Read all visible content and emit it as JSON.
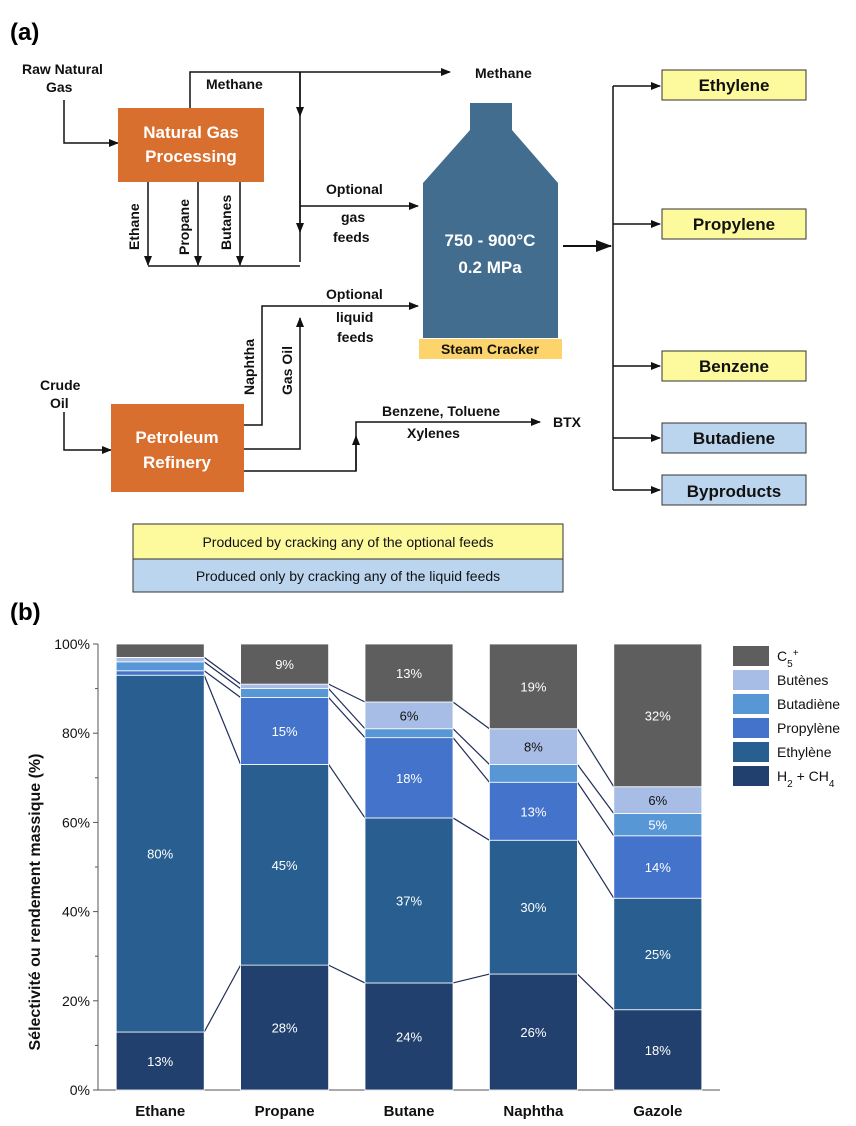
{
  "panel_a": {
    "label": "(a)",
    "inputs": {
      "raw_gas": [
        "Raw Natural",
        "Gas"
      ],
      "crude": [
        "Crude",
        "Oil"
      ]
    },
    "ngp": [
      "Natural Gas",
      "Processing"
    ],
    "refinery": [
      "Petroleum",
      "Refinery"
    ],
    "methane_branch": "Methane",
    "methane_out": "Methane",
    "gas_streams": [
      "Ethane",
      "Propane",
      "Butanes"
    ],
    "liquid_streams": [
      "Naphtha",
      "Gas Oil"
    ],
    "gas_feed": [
      "Optional",
      "gas",
      "feeds"
    ],
    "liquid_feed": [
      "Optional",
      "liquid",
      "feeds"
    ],
    "btx_label": [
      "Benzene, Toluene",
      "Xylenes"
    ],
    "btx_out": "BTX",
    "cracker": {
      "temp": "750 - 900°C",
      "pressure": "0.2 MPa",
      "name": "Steam Cracker"
    },
    "products": [
      {
        "name": "Ethylene",
        "kind": "optional"
      },
      {
        "name": "Propylene",
        "kind": "optional"
      },
      {
        "name": "Benzene",
        "kind": "optional"
      },
      {
        "name": "Butadiene",
        "kind": "liquid"
      },
      {
        "name": "Byproducts",
        "kind": "liquid"
      }
    ],
    "legend": {
      "optional": "Produced by cracking any of the optional feeds",
      "liquid": "Produced only by cracking any of the liquid feeds"
    },
    "colors": {
      "box": "#d96f2e",
      "cracker": "#436d8f",
      "optional": "#fdf99d",
      "liquid": "#bcd5ee",
      "cracker_label": "#fdd46b"
    }
  },
  "chart_data": {
    "type": "bar",
    "stacked": true,
    "panel_label": "(b)",
    "ylabel": "Sélectivité ou rendement massique (%)",
    "ylim": [
      0,
      100
    ],
    "yticks": [
      "0%",
      "20%",
      "40%",
      "60%",
      "80%",
      "100%"
    ],
    "categories": [
      "Ethane",
      "Propane",
      "Butane",
      "Naphtha",
      "Gazole"
    ],
    "series": [
      {
        "name": "H",
        "name_sub": "2",
        "name_rest": " + CH",
        "name_sub2": "4",
        "color": "#22406d",
        "values": [
          13,
          28,
          24,
          26,
          18
        ],
        "labels": [
          "13%",
          "28%",
          "24%",
          "26%",
          "18%"
        ]
      },
      {
        "name": "Ethylène",
        "color": "#285f90",
        "values": [
          80,
          45,
          37,
          30,
          25
        ],
        "labels": [
          "80%",
          "45%",
          "37%",
          "30%",
          "25%"
        ]
      },
      {
        "name": "Propylène",
        "color": "#4473cc",
        "values": [
          1,
          15,
          18,
          13,
          14
        ],
        "labels": [
          "",
          "15%",
          "18%",
          "13%",
          "14%"
        ]
      },
      {
        "name": "Butadiène",
        "color": "#5897d6",
        "values": [
          2,
          2,
          2,
          4,
          5
        ],
        "labels": [
          "",
          "",
          "",
          "",
          "5%"
        ]
      },
      {
        "name": "Butènes",
        "color": "#a8bde6",
        "values": [
          1,
          1,
          6,
          8,
          6
        ],
        "labels": [
          "",
          "",
          "6%",
          "8%",
          "6%"
        ]
      },
      {
        "name": "C",
        "name_sub": "5",
        "name_sup": "+",
        "color": "#5e5e5e",
        "values": [
          3,
          9,
          13,
          19,
          32
        ],
        "labels": [
          "",
          "9%",
          "13%",
          "19%",
          "32%"
        ]
      }
    ],
    "legend_position": "right"
  }
}
